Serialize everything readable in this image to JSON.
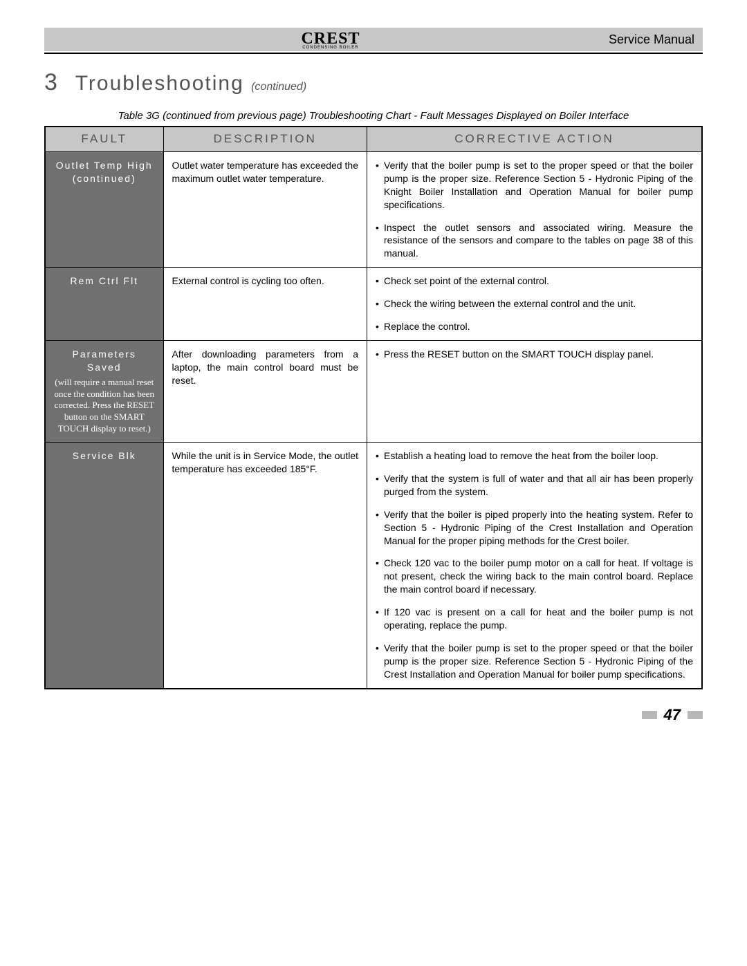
{
  "header": {
    "brand": "CREST",
    "brand_sub": "CONDENSING BOILER",
    "doc_type": "Service Manual"
  },
  "section": {
    "number": "3",
    "title": "Troubleshooting",
    "suffix": "(continued)"
  },
  "caption": "Table 3G (continued from previous page) Troubleshooting Chart - Fault Messages Displayed on Boiler Interface",
  "table": {
    "columns": [
      "FAULT",
      "DESCRIPTION",
      "CORRECTIVE ACTION"
    ],
    "col_widths_pct": [
      18,
      31,
      51
    ],
    "header_bg": "#c7c7c7",
    "header_color": "#535353",
    "fault_cell_bg": "#707070",
    "fault_cell_color": "#ffffff",
    "rows": [
      {
        "fault": "Outlet Temp High (continued)",
        "fault_note": "",
        "description": "Outlet water temperature has exceeded the maximum outlet water temperature.",
        "actions": [
          "Verify that the boiler pump is set to the proper speed or that the boiler pump is the proper size.  Reference Section 5 - Hydronic Piping of the Knight  Boiler Installation and Operation Manual for boiler pump specifications.",
          "Inspect the outlet sensors and associated wiring.  Measure the resistance of the sensors and compare to the tables on page 38 of this manual."
        ]
      },
      {
        "fault": "Rem Ctrl Flt",
        "fault_note": "",
        "description": "External control is cycling too often.",
        "actions": [
          "Check set point of the external control.",
          "Check the wiring between the external control and the unit.",
          "Replace the control."
        ]
      },
      {
        "fault": "Parameters Saved",
        "fault_note": "(will require a manual reset once the condition has been corrected.  Press the RESET button on the SMART TOUCH display to reset.)",
        "description": "After downloading parameters from a laptop, the main control board must be reset.",
        "actions": [
          "Press the RESET button on the SMART TOUCH display panel."
        ]
      },
      {
        "fault": "Service Blk",
        "fault_note": "",
        "description": "While the unit is in Service Mode, the outlet temperature has exceeded 185°F.",
        "actions": [
          "Establish a heating load to remove the heat from the boiler loop.",
          "Verify that the system is full of water and that all air has been properly purged from the system.",
          "Verify that the boiler is piped properly into the heating system.  Refer to Section 5 - Hydronic Piping of the Crest Installation and Operation Manual for the proper piping methods for the Crest boiler.",
          "Check 120 vac to the boiler pump motor on a call for heat.  If voltage is not present, check the wiring back to the main control board.  Replace the main control board if necessary.",
          "If 120 vac is present on a call for heat and the boiler pump is not operating, replace the pump.",
          "Verify that the boiler pump is set to the proper speed or  that the boiler pump is the proper size. Reference Section 5 - Hydronic Piping of the Crest  Installation and Operation Manual for boiler pump specifications."
        ]
      }
    ]
  },
  "page_number": "47",
  "colors": {
    "gray_bar": "#c7c7c7",
    "section_text": "#535353",
    "page_bg": "#ffffff"
  }
}
